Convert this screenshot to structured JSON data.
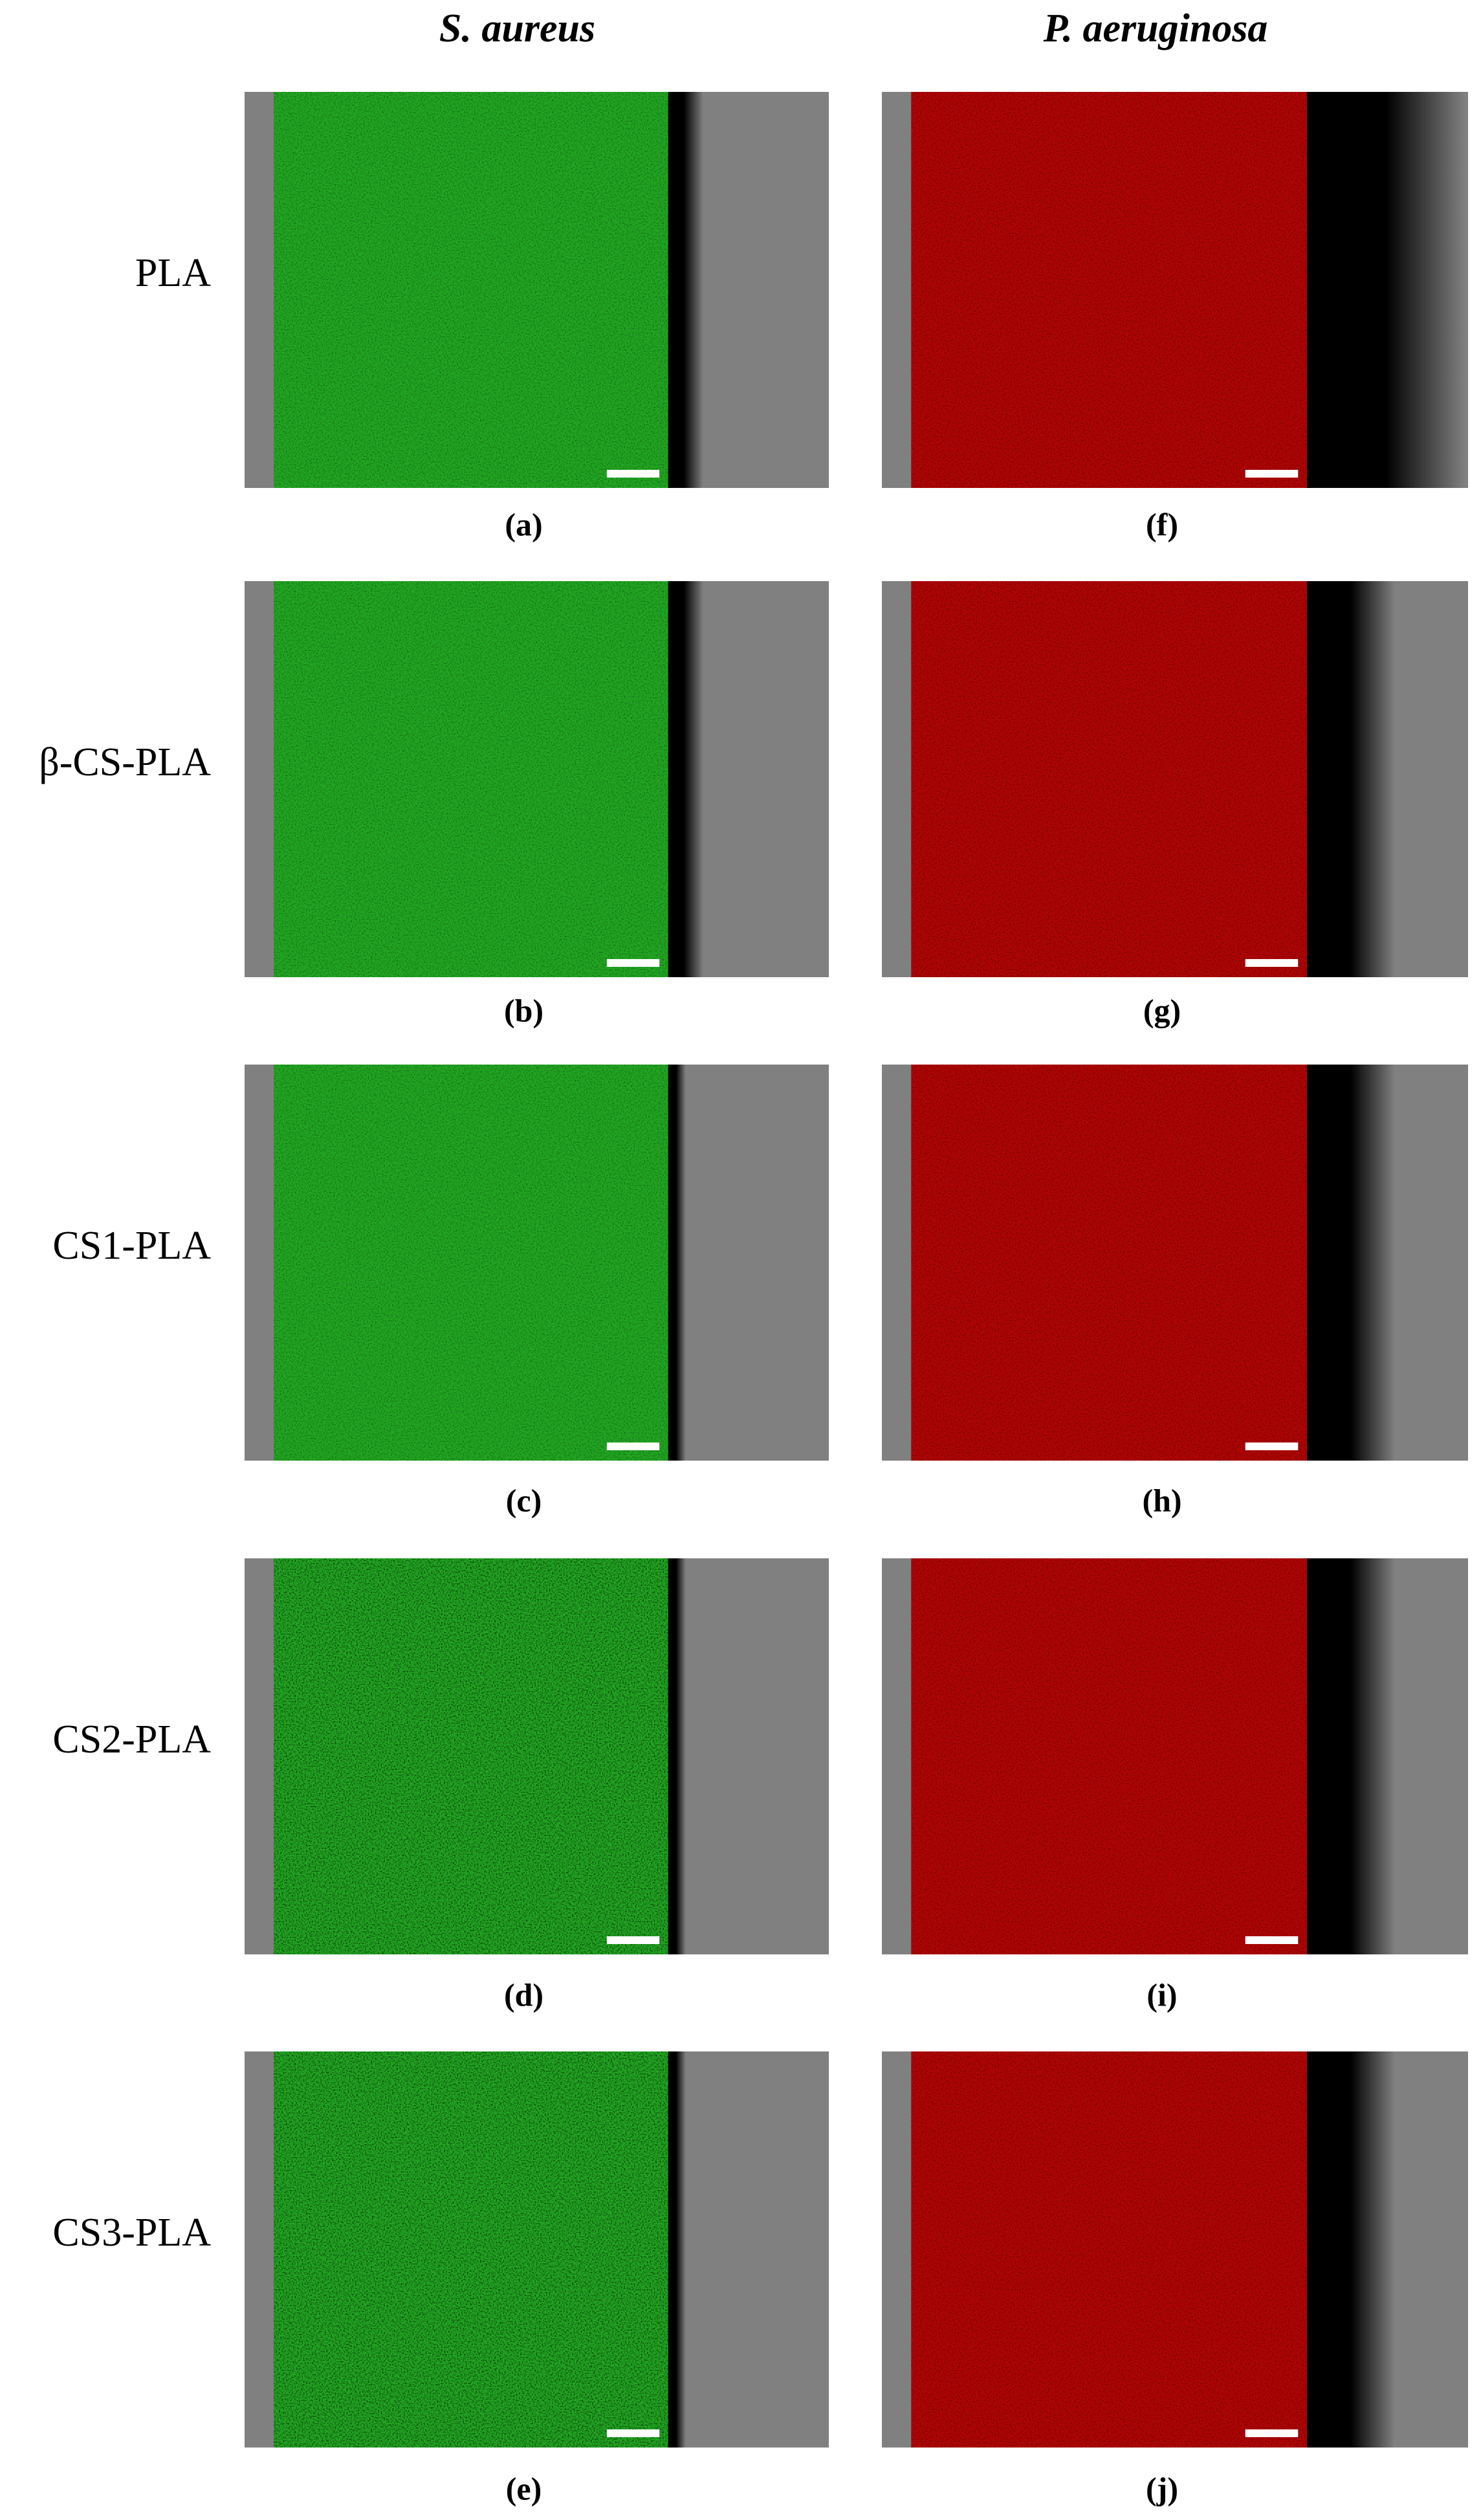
{
  "header": {
    "columns": [
      "S. aureus",
      "P. aeruginosa"
    ]
  },
  "rows": [
    {
      "label": "PLA",
      "panels": [
        {
          "caption": "(a)"
        },
        {
          "caption": "(f)"
        }
      ]
    },
    {
      "label": "β-CS-PLA",
      "panels": [
        {
          "caption": "(b)"
        },
        {
          "caption": "(g)"
        }
      ]
    },
    {
      "label": "CS1-PLA",
      "panels": [
        {
          "caption": "(c)"
        },
        {
          "caption": "(h)"
        }
      ]
    },
    {
      "label": "CS2-PLA",
      "panels": [
        {
          "caption": "(d)"
        },
        {
          "caption": "(i)"
        }
      ]
    },
    {
      "label": "CS3-PLA",
      "panels": [
        {
          "caption": "(e)"
        },
        {
          "caption": "(j)"
        }
      ]
    }
  ]
}
